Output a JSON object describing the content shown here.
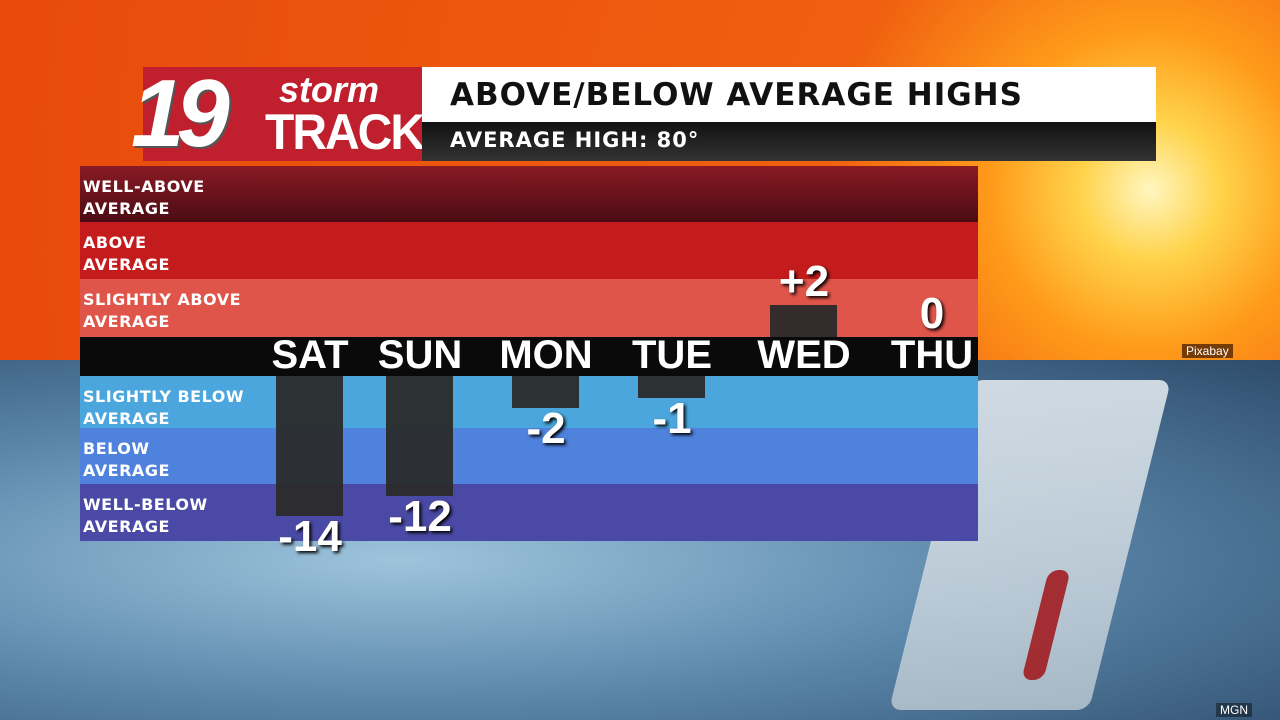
{
  "header": {
    "logo_text": "19 storm TRACK",
    "title": "ABOVE/BELOW AVERAGE HIGHS",
    "subtitle": "AVERAGE HIGH: 80°"
  },
  "credits": {
    "top": "Pixabay",
    "bottom": "MGN"
  },
  "chart_data": {
    "type": "bar",
    "title": "ABOVE/BELOW AVERAGE HIGHS",
    "subtitle": "AVERAGE HIGH: 80°",
    "categories": [
      "SAT",
      "SUN",
      "MON",
      "TUE",
      "WED",
      "THU"
    ],
    "values": [
      -14,
      -12,
      -2,
      -1,
      2,
      0
    ],
    "labels": [
      "-14",
      "-12",
      "-2",
      "-1",
      "+2",
      "0"
    ],
    "bands": [
      {
        "label": "WELL-ABOVE AVERAGE",
        "color": "#7a1420"
      },
      {
        "label": "ABOVE AVERAGE",
        "color": "#c41c1c"
      },
      {
        "label": "SLIGHTLY ABOVE AVERAGE",
        "color": "#e0554a"
      },
      {
        "label": "SLIGHTLY BELOW AVERAGE",
        "color": "#4aa6dc"
      },
      {
        "label": "BELOW AVERAGE",
        "color": "#4f82dc"
      },
      {
        "label": "WELL-BELOW AVERAGE",
        "color": "#4a4aa6"
      }
    ]
  }
}
